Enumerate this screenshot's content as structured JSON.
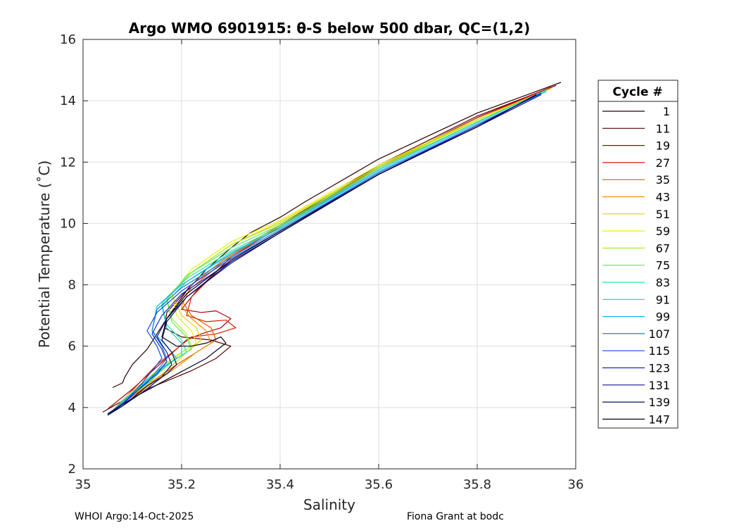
{
  "chart_data": {
    "type": "line",
    "title": "Argo WMO 6901915: θ-S below 500 dbar,  QC=(1,2)",
    "xlabel": "Salinity",
    "ylabel": "Potential Temperature (˚C)",
    "xlim": [
      35,
      36
    ],
    "ylim": [
      2,
      16
    ],
    "xticks": [
      35,
      35.2,
      35.4,
      35.6,
      35.8,
      36
    ],
    "xtick_labels": [
      "35",
      "35.2",
      "35.4",
      "35.6",
      "35.8",
      "36"
    ],
    "yticks": [
      2,
      4,
      6,
      8,
      10,
      12,
      14,
      16
    ],
    "ytick_labels": [
      "2",
      "4",
      "6",
      "8",
      "10",
      "12",
      "14",
      "16"
    ],
    "grid": true,
    "legend": {
      "title": "Cycle #",
      "position": "right",
      "entries": [
        {
          "label": "1",
          "color": "#2a0000"
        },
        {
          "label": "11",
          "color": "#5c0000"
        },
        {
          "label": "19",
          "color": "#b00000"
        },
        {
          "label": "27",
          "color": "#dd1a00"
        },
        {
          "label": "35",
          "color": "#ea5a00"
        },
        {
          "label": "43",
          "color": "#f09000"
        },
        {
          "label": "51",
          "color": "#e6d200"
        },
        {
          "label": "59",
          "color": "#eeee10"
        },
        {
          "label": "67",
          "color": "#a6ee2a"
        },
        {
          "label": "75",
          "color": "#5ee85e"
        },
        {
          "label": "83",
          "color": "#2ae2a0"
        },
        {
          "label": "91",
          "color": "#22cccc"
        },
        {
          "label": "99",
          "color": "#14b4ea"
        },
        {
          "label": "107",
          "color": "#1480d8"
        },
        {
          "label": "115",
          "color": "#1048e0"
        },
        {
          "label": "123",
          "color": "#1c24d0"
        },
        {
          "label": "131",
          "color": "#141494"
        },
        {
          "label": "139",
          "color": "#0c0c5c"
        },
        {
          "label": "147",
          "color": "#040420"
        }
      ]
    },
    "series": [
      {
        "cycle": 1,
        "color": "#2a0000",
        "x": [
          35.97,
          35.8,
          35.6,
          35.45,
          35.4,
          35.34,
          35.3,
          35.25,
          35.21,
          35.17,
          35.13,
          35.1,
          35.085,
          35.08,
          35.06
        ],
        "y": [
          14.6,
          13.6,
          12.1,
          10.7,
          10.2,
          9.7,
          9.2,
          8.5,
          7.8,
          6.9,
          5.9,
          5.4,
          5.0,
          4.8,
          4.65
        ]
      },
      {
        "cycle": 11,
        "color": "#5c0000",
        "x": [
          35.96,
          35.8,
          35.6,
          35.4,
          35.3,
          35.22,
          35.17,
          35.165,
          35.2,
          35.26,
          35.3,
          35.27,
          35.22,
          35.1,
          35.04
        ],
        "y": [
          14.5,
          13.5,
          11.9,
          9.95,
          9.0,
          8.0,
          7.1,
          6.6,
          6.3,
          6.2,
          6.0,
          5.6,
          5.2,
          4.4,
          3.85
        ]
      },
      {
        "cycle": 19,
        "color": "#b00000",
        "x": [
          35.95,
          35.8,
          35.6,
          35.4,
          35.3,
          35.23,
          35.2,
          35.24,
          35.27,
          35.3,
          35.28,
          35.24,
          35.21,
          35.1,
          35.05
        ],
        "y": [
          14.45,
          13.45,
          11.85,
          9.9,
          8.9,
          7.8,
          7.2,
          7.1,
          7.15,
          6.9,
          6.6,
          6.4,
          6.2,
          4.6,
          3.95
        ]
      },
      {
        "cycle": 27,
        "color": "#dd1a00",
        "x": [
          35.95,
          35.8,
          35.6,
          35.4,
          35.3,
          35.22,
          35.21,
          35.25,
          35.29,
          35.31,
          35.27,
          35.22,
          35.15,
          35.06
        ],
        "y": [
          14.45,
          13.4,
          11.85,
          9.9,
          8.9,
          7.6,
          7.0,
          6.8,
          6.85,
          6.6,
          6.4,
          6.3,
          5.4,
          3.9
        ]
      },
      {
        "cycle": 35,
        "color": "#ea5a00",
        "x": [
          35.95,
          35.8,
          35.6,
          35.4,
          35.3,
          35.22,
          35.2,
          35.22,
          35.26,
          35.27,
          35.24,
          35.19,
          35.12,
          35.06
        ],
        "y": [
          14.4,
          13.4,
          11.8,
          9.9,
          8.95,
          7.9,
          7.5,
          7.0,
          6.6,
          6.2,
          5.9,
          5.4,
          4.6,
          3.9
        ]
      },
      {
        "cycle": 43,
        "color": "#f09000",
        "x": [
          35.95,
          35.8,
          35.6,
          35.4,
          35.3,
          35.22,
          35.2,
          35.22,
          35.25,
          35.26,
          35.23,
          35.18,
          35.1,
          35.06
        ],
        "y": [
          14.4,
          13.4,
          11.8,
          9.95,
          9.0,
          8.0,
          7.3,
          6.9,
          6.5,
          6.1,
          5.8,
          5.2,
          4.3,
          3.9
        ]
      },
      {
        "cycle": 51,
        "color": "#e6d200",
        "x": [
          35.95,
          35.8,
          35.6,
          35.4,
          35.3,
          35.22,
          35.18,
          35.2,
          35.23,
          35.24,
          35.21,
          35.17,
          35.1,
          35.06
        ],
        "y": [
          14.4,
          13.4,
          11.85,
          10.05,
          9.3,
          8.4,
          7.7,
          7.0,
          6.6,
          6.2,
          5.8,
          5.2,
          4.4,
          3.9
        ]
      },
      {
        "cycle": 59,
        "color": "#eeee10",
        "x": [
          35.95,
          35.8,
          35.6,
          35.4,
          35.3,
          35.22,
          35.18,
          35.19,
          35.22,
          35.23,
          35.2,
          35.16,
          35.1,
          35.06
        ],
        "y": [
          14.4,
          13.4,
          11.9,
          10.1,
          9.4,
          8.5,
          7.7,
          7.0,
          6.5,
          6.1,
          5.8,
          5.2,
          4.4,
          3.9
        ]
      },
      {
        "cycle": 67,
        "color": "#a6ee2a",
        "x": [
          35.95,
          35.8,
          35.6,
          35.4,
          35.3,
          35.22,
          35.17,
          35.18,
          35.21,
          35.22,
          35.19,
          35.15,
          35.09,
          35.06
        ],
        "y": [
          14.4,
          13.35,
          11.85,
          10.0,
          9.3,
          8.4,
          7.6,
          6.9,
          6.4,
          6.0,
          5.7,
          5.2,
          4.4,
          3.9
        ]
      },
      {
        "cycle": 75,
        "color": "#5ee85e",
        "x": [
          35.94,
          35.8,
          35.6,
          35.4,
          35.3,
          35.21,
          35.17,
          35.18,
          35.21,
          35.22,
          35.19,
          35.15,
          35.09,
          35.06
        ],
        "y": [
          14.35,
          13.3,
          11.8,
          9.95,
          9.2,
          8.3,
          7.5,
          6.8,
          6.3,
          5.9,
          5.6,
          5.1,
          4.3,
          3.85
        ]
      },
      {
        "cycle": 83,
        "color": "#2ae2a0",
        "x": [
          35.94,
          35.8,
          35.6,
          35.4,
          35.3,
          35.21,
          35.16,
          35.17,
          35.2,
          35.21,
          35.18,
          35.14,
          35.08,
          35.06
        ],
        "y": [
          14.35,
          13.3,
          11.75,
          9.9,
          9.1,
          8.2,
          7.4,
          6.7,
          6.2,
          5.8,
          5.5,
          5.0,
          4.2,
          3.85
        ]
      },
      {
        "cycle": 91,
        "color": "#22cccc",
        "x": [
          35.94,
          35.8,
          35.6,
          35.4,
          35.3,
          35.21,
          35.16,
          35.17,
          35.2,
          35.2,
          35.17,
          35.14,
          35.08,
          35.055
        ],
        "y": [
          14.35,
          13.3,
          11.75,
          9.85,
          9.05,
          8.1,
          7.3,
          6.6,
          6.1,
          5.7,
          5.4,
          4.9,
          4.2,
          3.8
        ]
      },
      {
        "cycle": 99,
        "color": "#14b4ea",
        "x": [
          35.94,
          35.8,
          35.6,
          35.4,
          35.3,
          35.2,
          35.15,
          35.14,
          35.17,
          35.19,
          35.16,
          35.13,
          35.08,
          35.055
        ],
        "y": [
          14.3,
          13.25,
          11.7,
          9.85,
          9.0,
          8.0,
          7.3,
          6.5,
          6.0,
          5.6,
          5.3,
          4.9,
          4.2,
          3.8
        ]
      },
      {
        "cycle": 107,
        "color": "#1480d8",
        "x": [
          35.93,
          35.8,
          35.6,
          35.4,
          35.3,
          35.2,
          35.15,
          35.14,
          35.16,
          35.17,
          35.15,
          35.13,
          35.08,
          35.05
        ],
        "y": [
          14.25,
          13.2,
          11.65,
          9.8,
          8.9,
          7.9,
          7.2,
          6.5,
          6.0,
          5.6,
          5.2,
          4.8,
          4.15,
          3.78
        ]
      },
      {
        "cycle": 115,
        "color": "#1048e0",
        "x": [
          35.93,
          35.8,
          35.6,
          35.4,
          35.3,
          35.2,
          35.15,
          35.13,
          35.15,
          35.16,
          35.14,
          35.12,
          35.08,
          35.05
        ],
        "y": [
          14.25,
          13.2,
          11.65,
          9.75,
          8.85,
          7.8,
          7.1,
          6.5,
          6.0,
          5.6,
          5.2,
          4.8,
          4.1,
          3.75
        ]
      },
      {
        "cycle": 123,
        "color": "#1c24d0",
        "x": [
          35.93,
          35.8,
          35.6,
          35.4,
          35.3,
          35.2,
          35.16,
          35.14,
          35.16,
          35.17,
          35.15,
          35.12,
          35.08,
          35.05
        ],
        "y": [
          14.25,
          13.2,
          11.6,
          9.7,
          8.75,
          7.7,
          7.0,
          6.4,
          5.9,
          5.5,
          5.1,
          4.7,
          4.1,
          3.75
        ]
      },
      {
        "cycle": 131,
        "color": "#141494",
        "x": [
          35.93,
          35.8,
          35.6,
          35.4,
          35.3,
          35.21,
          35.17,
          35.15,
          35.17,
          35.18,
          35.16,
          35.13,
          35.08,
          35.05
        ],
        "y": [
          14.2,
          13.15,
          11.6,
          9.7,
          8.7,
          7.6,
          6.9,
          6.3,
          5.8,
          5.4,
          5.0,
          4.6,
          4.05,
          3.75
        ]
      },
      {
        "cycle": 139,
        "color": "#0c0c5c",
        "x": [
          35.92,
          35.8,
          35.6,
          35.4,
          35.3,
          35.21,
          35.17,
          35.16,
          35.18,
          35.19,
          35.17,
          35.13,
          35.08,
          35.05
        ],
        "y": [
          14.2,
          13.15,
          11.6,
          9.7,
          8.75,
          7.6,
          6.8,
          6.2,
          5.8,
          5.4,
          5.1,
          4.7,
          4.05,
          3.75
        ]
      },
      {
        "cycle": 147,
        "color": "#040420",
        "x": [
          35.92,
          35.8,
          35.6,
          35.4,
          35.3,
          35.21,
          35.17,
          35.16,
          35.19,
          35.22,
          35.25,
          35.28,
          35.29,
          35.25,
          35.18,
          35.1,
          35.05
        ],
        "y": [
          14.2,
          13.15,
          11.6,
          9.75,
          8.8,
          7.7,
          6.9,
          6.3,
          6.0,
          6.0,
          6.1,
          6.3,
          6.1,
          5.6,
          5.0,
          4.3,
          3.8
        ]
      }
    ]
  },
  "footer": {
    "left": "WHOI Argo:14-Oct-2025",
    "right": "Fiona Grant at bodc"
  }
}
